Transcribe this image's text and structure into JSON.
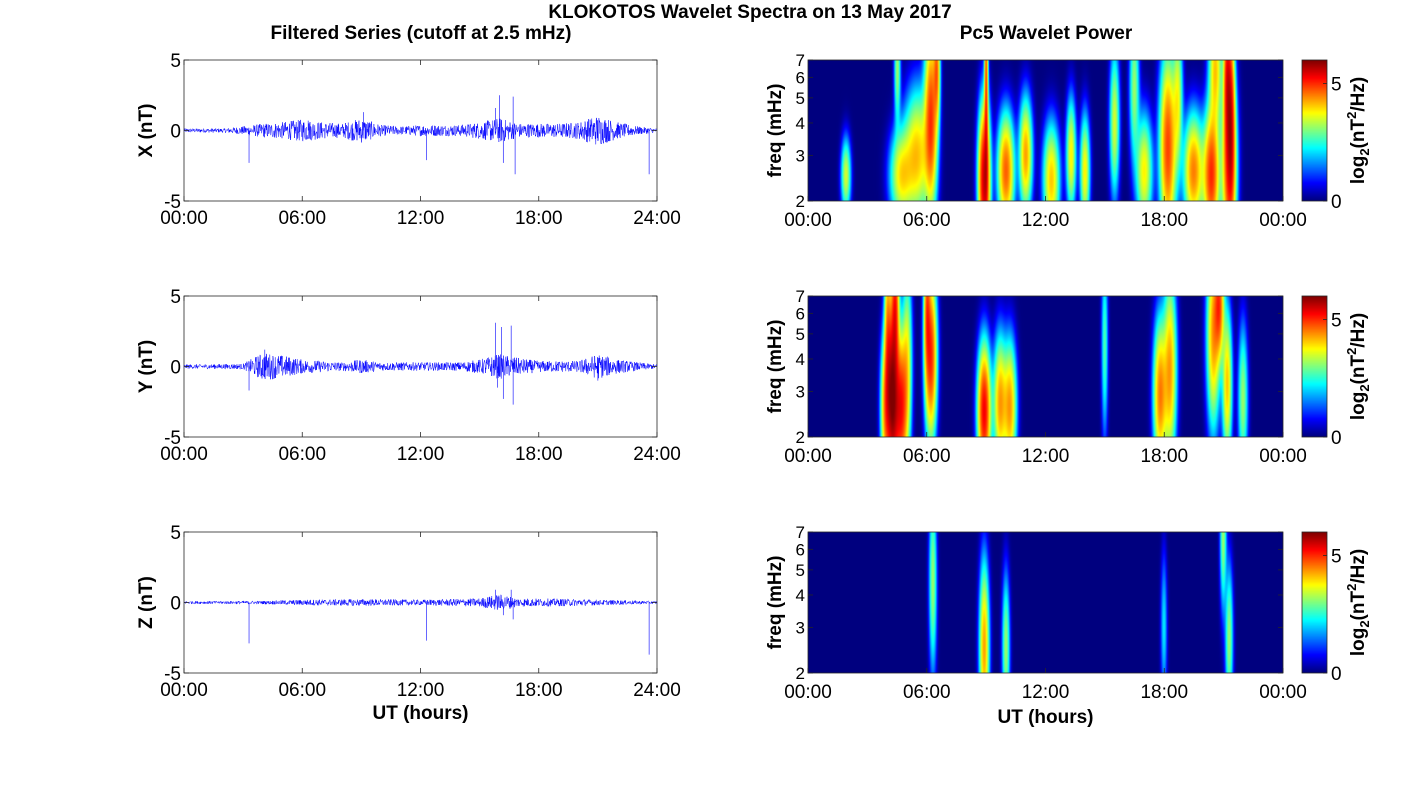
{
  "figure": {
    "suptitle": "KLOKOTOS Wavelet Spectra on 13 May 2017",
    "left_title": "Filtered Series (cutoff at 2.5 mHz)",
    "right_title": "Pc5 Wavelet Power"
  },
  "colors": {
    "trace": "#0000ff",
    "frame": "#262626"
  },
  "chart_data": [
    {
      "type": "line",
      "panel": "X-series",
      "ylabel": "X (nT)",
      "xlabel": "",
      "ylim": [
        -5,
        5
      ],
      "yticks": [
        "5",
        "0",
        "-5"
      ],
      "xticks": [
        "00:00",
        "06:00",
        "12:00",
        "18:00",
        "24:00"
      ],
      "xlim_hours": [
        0,
        24
      ],
      "grid": false,
      "series": [
        {
          "values_note": "",
          "envelope": [
            [
              0,
              0.15
            ],
            [
              2,
              0.15
            ],
            [
              3,
              0.3
            ],
            [
              4,
              0.5
            ],
            [
              5,
              0.6
            ],
            [
              6,
              0.8
            ],
            [
              7,
              0.6
            ],
            [
              8,
              0.5
            ],
            [
              9,
              0.9
            ],
            [
              10,
              0.4
            ],
            [
              11,
              0.3
            ],
            [
              12,
              0.4
            ],
            [
              13,
              0.4
            ],
            [
              14,
              0.4
            ],
            [
              15,
              0.6
            ],
            [
              16,
              0.9
            ],
            [
              17,
              0.5
            ],
            [
              18,
              0.5
            ],
            [
              19,
              0.5
            ],
            [
              20,
              0.6
            ],
            [
              21,
              1.1
            ],
            [
              22,
              0.6
            ],
            [
              23,
              0.3
            ],
            [
              24,
              0.15
            ]
          ],
          "spikes": [
            [
              3.3,
              -2.3
            ],
            [
              6.3,
              0.7
            ],
            [
              9.1,
              1.3
            ],
            [
              12.3,
              -2.1
            ],
            [
              15.8,
              1.6
            ],
            [
              16.0,
              2.5
            ],
            [
              16.2,
              -2.3
            ],
            [
              16.7,
              2.4
            ],
            [
              16.8,
              -3.1
            ],
            [
              23.6,
              -3.1
            ]
          ]
        }
      ]
    },
    {
      "type": "heatmap",
      "panel": "X-spectrum",
      "ylabel": "freq (mHz)",
      "xlabel": "",
      "ylim": [
        2,
        7
      ],
      "yscale": "log",
      "yticks": [
        "7",
        "6",
        "5",
        "4",
        "3",
        "2"
      ],
      "xticks": [
        "00:00",
        "06:00",
        "12:00",
        "18:00",
        "00:00"
      ],
      "colorbar": {
        "label": "log2(nT2/Hz)",
        "ticks": [
          "5",
          "0"
        ],
        "range": [
          0,
          6
        ],
        "colormap": "jet"
      },
      "blobs": [
        [
          1.9,
          2.5,
          5,
          0.15,
          0.2
        ],
        [
          4.7,
          2.5,
          6,
          0.35,
          0.25
        ],
        [
          5.5,
          3.0,
          7,
          0.4,
          0.35
        ],
        [
          6.2,
          4.2,
          11,
          0.2,
          0.5
        ],
        [
          6.5,
          6.5,
          8,
          0.1,
          0.3
        ],
        [
          4.5,
          6.5,
          4,
          0.1,
          0.3
        ],
        [
          8.9,
          2.4,
          16,
          0.18,
          0.4
        ],
        [
          9.0,
          6.0,
          10,
          0.06,
          0.6
        ],
        [
          10.0,
          2.6,
          10,
          0.25,
          0.3
        ],
        [
          11.0,
          3.0,
          8,
          0.2,
          0.3
        ],
        [
          12.3,
          2.4,
          7,
          0.25,
          0.3
        ],
        [
          13.3,
          3.0,
          6,
          0.15,
          0.3
        ],
        [
          14.0,
          2.6,
          6,
          0.15,
          0.3
        ],
        [
          15.5,
          4.0,
          5,
          0.15,
          0.4
        ],
        [
          16.5,
          5.5,
          4,
          0.15,
          0.4
        ],
        [
          17.0,
          2.6,
          6,
          0.25,
          0.3
        ],
        [
          18.2,
          3.2,
          11,
          0.25,
          0.5
        ],
        [
          18.7,
          5.0,
          5,
          0.15,
          0.4
        ],
        [
          19.5,
          2.6,
          9,
          0.3,
          0.3
        ],
        [
          20.4,
          2.5,
          12,
          0.25,
          0.35
        ],
        [
          20.6,
          6.5,
          7,
          0.2,
          0.35
        ],
        [
          21.3,
          2.7,
          12,
          0.22,
          0.5
        ],
        [
          21.2,
          6.2,
          11,
          0.12,
          0.4
        ],
        [
          21.4,
          4.5,
          9,
          0.12,
          0.5
        ]
      ]
    },
    {
      "type": "line",
      "panel": "Y-series",
      "ylabel": "Y (nT)",
      "xlabel": "",
      "ylim": [
        -5,
        5
      ],
      "yticks": [
        "5",
        "0",
        "-5"
      ],
      "xticks": [
        "00:00",
        "06:00",
        "12:00",
        "18:00",
        "24:00"
      ],
      "xlim_hours": [
        0,
        24
      ],
      "grid": false,
      "series": [
        {
          "values_note": "",
          "envelope": [
            [
              0,
              0.15
            ],
            [
              3,
              0.2
            ],
            [
              4,
              1.0
            ],
            [
              5,
              0.8
            ],
            [
              6,
              0.5
            ],
            [
              7,
              0.4
            ],
            [
              8,
              0.3
            ],
            [
              9,
              0.5
            ],
            [
              10,
              0.3
            ],
            [
              12,
              0.3
            ],
            [
              13,
              0.3
            ],
            [
              14,
              0.3
            ],
            [
              15,
              0.5
            ],
            [
              16,
              0.9
            ],
            [
              17,
              0.6
            ],
            [
              18,
              0.4
            ],
            [
              19,
              0.4
            ],
            [
              20,
              0.4
            ],
            [
              21,
              0.9
            ],
            [
              22,
              0.5
            ],
            [
              23,
              0.3
            ],
            [
              24,
              0.15
            ]
          ],
          "spikes": [
            [
              3.3,
              -1.7
            ],
            [
              4.1,
              1.2
            ],
            [
              15.8,
              3.1
            ],
            [
              15.9,
              -1.5
            ],
            [
              16.1,
              2.8
            ],
            [
              16.2,
              -2.3
            ],
            [
              16.6,
              2.9
            ],
            [
              16.7,
              -2.7
            ],
            [
              21.0,
              -1.0
            ]
          ]
        }
      ]
    },
    {
      "type": "heatmap",
      "panel": "Y-spectrum",
      "ylabel": "freq (mHz)",
      "xlabel": "",
      "ylim": [
        2,
        7
      ],
      "yscale": "log",
      "yticks": [
        "7",
        "6",
        "5",
        "4",
        "3",
        "2"
      ],
      "xticks": [
        "00:00",
        "06:00",
        "12:00",
        "18:00",
        "00:00"
      ],
      "colorbar": {
        "label": "log2(nT2/Hz)",
        "ticks": [
          "5",
          "0"
        ],
        "range": [
          0,
          6
        ],
        "colormap": "jet"
      },
      "blobs": [
        [
          3.9,
          2.6,
          8,
          0.15,
          0.4
        ],
        [
          4.3,
          2.5,
          12,
          0.2,
          0.4
        ],
        [
          4.7,
          2.6,
          12,
          0.2,
          0.4
        ],
        [
          4.2,
          3.5,
          10,
          0.15,
          0.5
        ],
        [
          4.4,
          6.5,
          11,
          0.12,
          0.4
        ],
        [
          4.0,
          5.5,
          6,
          0.1,
          0.5
        ],
        [
          5.0,
          4.0,
          5,
          0.15,
          0.5
        ],
        [
          6.2,
          4.1,
          12,
          0.18,
          0.45
        ],
        [
          6.0,
          6.3,
          8,
          0.1,
          0.4
        ],
        [
          8.9,
          2.5,
          14,
          0.2,
          0.35
        ],
        [
          9.7,
          2.7,
          8,
          0.2,
          0.35
        ],
        [
          10.2,
          2.6,
          8,
          0.2,
          0.35
        ],
        [
          17.8,
          2.9,
          9,
          0.2,
          0.4
        ],
        [
          18.3,
          3.6,
          8,
          0.2,
          0.5
        ],
        [
          20.5,
          5.0,
          8,
          0.2,
          0.5
        ],
        [
          20.8,
          6.5,
          10,
          0.15,
          0.3
        ],
        [
          21.2,
          3.2,
          7,
          0.15,
          0.4
        ],
        [
          22.0,
          2.8,
          4,
          0.15,
          0.4
        ],
        [
          15.0,
          4.5,
          3,
          0.1,
          0.5
        ]
      ]
    },
    {
      "type": "line",
      "panel": "Z-series",
      "ylabel": "Z (nT)",
      "xlabel": "UT (hours)",
      "ylim": [
        -5,
        5
      ],
      "yticks": [
        "5",
        "0",
        "-5"
      ],
      "xticks": [
        "00:00",
        "06:00",
        "12:00",
        "18:00",
        "24:00"
      ],
      "xlim_hours": [
        0,
        24
      ],
      "grid": false,
      "series": [
        {
          "values_note": "",
          "envelope": [
            [
              0,
              0.1
            ],
            [
              4,
              0.12
            ],
            [
              6,
              0.2
            ],
            [
              9,
              0.25
            ],
            [
              12,
              0.2
            ],
            [
              15,
              0.3
            ],
            [
              16,
              0.6
            ],
            [
              17,
              0.3
            ],
            [
              20,
              0.25
            ],
            [
              21,
              0.2
            ],
            [
              24,
              0.1
            ]
          ],
          "spikes": [
            [
              3.3,
              -2.9
            ],
            [
              12.3,
              -2.7
            ],
            [
              15.8,
              0.9
            ],
            [
              16.2,
              -0.9
            ],
            [
              16.6,
              0.9
            ],
            [
              16.7,
              -1.2
            ],
            [
              23.6,
              -3.7
            ]
          ]
        }
      ]
    },
    {
      "type": "heatmap",
      "panel": "Z-spectrum",
      "ylabel": "freq (mHz)",
      "xlabel": "UT (hours)",
      "ylim": [
        2,
        7
      ],
      "yscale": "log",
      "yticks": [
        "7",
        "6",
        "5",
        "4",
        "3",
        "2"
      ],
      "xticks": [
        "00:00",
        "06:00",
        "12:00",
        "18:00",
        "00:00"
      ],
      "colorbar": {
        "label": "log2(nT2/Hz)",
        "ticks": [
          "5",
          "0"
        ],
        "range": [
          0,
          6
        ],
        "colormap": "jet"
      },
      "blobs": [
        [
          8.9,
          2.5,
          8,
          0.15,
          0.45
        ],
        [
          10.0,
          2.5,
          4,
          0.12,
          0.4
        ],
        [
          6.3,
          4.5,
          4,
          0.12,
          0.5
        ],
        [
          21.0,
          6.8,
          4,
          0.1,
          0.4
        ],
        [
          21.3,
          2.7,
          4,
          0.12,
          0.4
        ],
        [
          18.0,
          3.0,
          2,
          0.1,
          0.4
        ]
      ]
    }
  ]
}
